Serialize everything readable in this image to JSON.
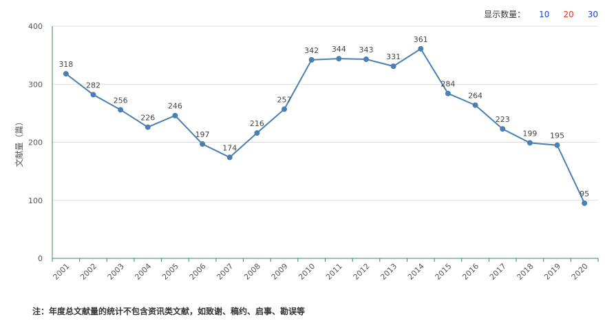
{
  "display_count": {
    "label": "显示数量：",
    "options": [
      {
        "text": "10",
        "color": "#1f3fd9"
      },
      {
        "text": "20",
        "color": "#e0301e"
      },
      {
        "text": "30",
        "color": "#1f3fd9"
      }
    ]
  },
  "note": "注：年度总文献量的统计不包含资讯类文献，如致谢、稿约、启事、勘误等",
  "chart_data": {
    "type": "line",
    "title": "",
    "xlabel": "",
    "ylabel": "文献量（篇）",
    "ylim": [
      0,
      400
    ],
    "yticks": [
      0,
      100,
      200,
      300,
      400
    ],
    "grid": true,
    "categories": [
      "2001",
      "2002",
      "2003",
      "2004",
      "2005",
      "2006",
      "2007",
      "2008",
      "2009",
      "2010",
      "2011",
      "2012",
      "2013",
      "2014",
      "2015",
      "2016",
      "2017",
      "2018",
      "2019",
      "2020"
    ],
    "series": [
      {
        "values": [
          318,
          282,
          256,
          226,
          246,
          197,
          174,
          216,
          257,
          342,
          344,
          343,
          331,
          361,
          284,
          264,
          223,
          199,
          195,
          95
        ],
        "color": "#4a7fb0"
      }
    ],
    "colors": {
      "axis": "#2e8b57",
      "grid": "#dddddd",
      "line": "#4a7fb0"
    }
  }
}
